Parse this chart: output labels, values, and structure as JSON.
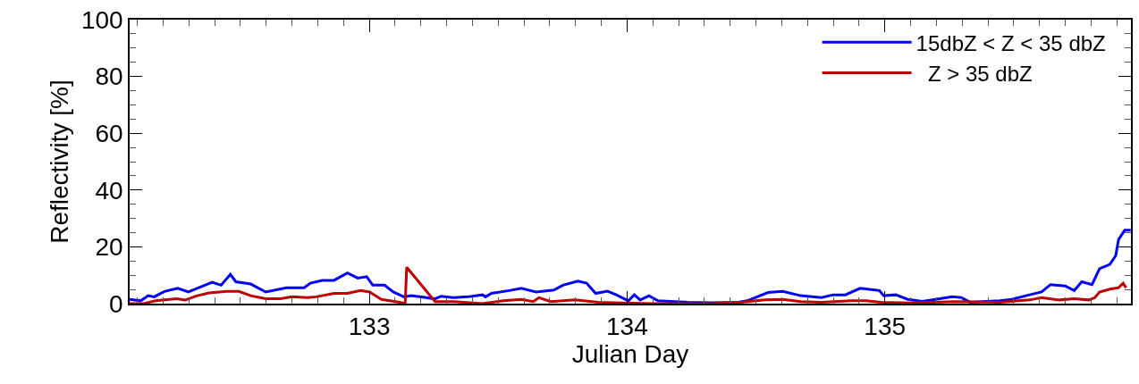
{
  "chart_data": {
    "type": "line",
    "xlabel": "Julian Day",
    "ylabel": "Reflectivity [%]",
    "xlim": [
      132.07,
      135.955
    ],
    "xticks": [
      133,
      134,
      135
    ],
    "ylim": [
      0,
      100
    ],
    "yticks": [
      0,
      20,
      40,
      60,
      80,
      100
    ],
    "legend": "top right",
    "marker": "none",
    "line_style": "solid",
    "series": [
      {
        "name": "15dbZ < Z < 35 dbZ",
        "color": "#0000ff",
        "x": [
          132.07,
          132.113,
          132.142,
          132.165,
          132.205,
          132.257,
          132.298,
          132.332,
          132.39,
          132.425,
          132.461,
          132.482,
          132.54,
          132.598,
          132.678,
          132.747,
          132.771,
          132.817,
          132.863,
          132.915,
          132.955,
          132.99,
          133.013,
          133.059,
          133.093,
          133.134,
          133.163,
          133.255,
          133.278,
          133.324,
          133.382,
          133.439,
          133.451,
          133.474,
          133.543,
          133.589,
          133.647,
          133.716,
          133.751,
          133.809,
          133.843,
          133.878,
          133.924,
          133.958,
          134.005,
          134.028,
          134.051,
          134.085,
          134.12,
          134.235,
          134.328,
          134.431,
          134.466,
          134.547,
          134.604,
          134.674,
          134.754,
          134.8,
          134.847,
          134.904,
          134.962,
          134.979,
          134.996,
          135.043,
          135.089,
          135.146,
          135.262,
          135.297,
          135.331,
          135.446,
          135.492,
          135.562,
          135.608,
          135.643,
          135.7,
          135.735,
          135.764,
          135.804,
          135.833,
          135.873,
          135.896,
          135.907,
          135.931,
          135.954
        ],
        "values": [
          1.5,
          1.0,
          2.8,
          2.4,
          4.3,
          5.4,
          4.1,
          5.4,
          7.5,
          6.5,
          10.3,
          7.7,
          6.9,
          4.1,
          5.6,
          5.6,
          7.2,
          8.2,
          8.2,
          10.8,
          9.0,
          9.5,
          6.5,
          6.5,
          4.1,
          2.4,
          2.8,
          1.7,
          2.6,
          2.1,
          2.4,
          3.1,
          2.4,
          3.6,
          4.6,
          5.4,
          4.1,
          4.8,
          6.5,
          7.9,
          7.2,
          3.6,
          4.4,
          3.1,
          1.0,
          3.1,
          1.3,
          2.8,
          1.0,
          0.5,
          0.3,
          0.5,
          1.0,
          3.9,
          4.3,
          2.8,
          2.1,
          3.1,
          3.1,
          5.4,
          4.8,
          4.6,
          2.8,
          3.1,
          1.5,
          0.8,
          2.4,
          2.1,
          0.5,
          1.0,
          1.5,
          3.1,
          4.1,
          6.7,
          6.2,
          4.6,
          7.7,
          6.7,
          12.3,
          13.8,
          16.9,
          22.6,
          25.9,
          25.9
        ]
      },
      {
        "name": "  Z > 35 dbZ",
        "color": "#c00000",
        "x": [
          132.07,
          132.125,
          132.171,
          132.252,
          132.286,
          132.332,
          132.378,
          132.447,
          132.494,
          132.54,
          132.598,
          132.655,
          132.701,
          132.759,
          132.793,
          132.863,
          132.915,
          132.966,
          133.001,
          133.047,
          133.117,
          133.139,
          133.145,
          133.255,
          133.324,
          133.439,
          133.52,
          133.589,
          133.636,
          133.658,
          133.705,
          133.797,
          133.889,
          133.982,
          134.097,
          134.328,
          134.443,
          134.535,
          134.604,
          134.674,
          134.754,
          134.869,
          134.927,
          134.985,
          135.1,
          135.273,
          135.446,
          135.562,
          135.608,
          135.677,
          135.735,
          135.792,
          135.815,
          135.833,
          135.873,
          135.907,
          135.925,
          135.936
        ],
        "values": [
          0,
          0,
          1.0,
          1.7,
          1.3,
          2.8,
          3.8,
          4.3,
          4.3,
          2.8,
          1.7,
          1.7,
          2.4,
          2.1,
          2.4,
          3.6,
          3.6,
          4.6,
          4.1,
          1.5,
          0.5,
          0,
          12.8,
          0.7,
          0.7,
          0,
          1.0,
          1.5,
          0.7,
          2.1,
          0.7,
          1.3,
          0.5,
          0.2,
          0,
          0,
          0.5,
          1.3,
          1.5,
          0.7,
          0.5,
          1.0,
          1.0,
          0.5,
          0.2,
          0.7,
          0.5,
          1.3,
          2.1,
          1.3,
          1.7,
          1.3,
          2.1,
          4.1,
          5.1,
          5.6,
          7.2,
          5.6
        ]
      }
    ]
  }
}
